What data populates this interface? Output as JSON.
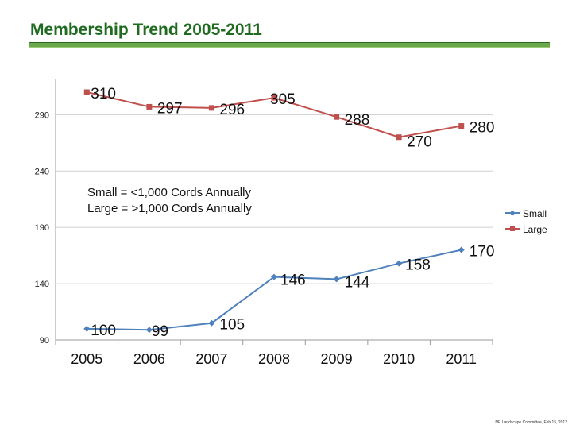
{
  "slide": {
    "title": "Membership Trend 2005-2011",
    "footer": "NE Landscape Committee, Feb 15, 2012"
  },
  "chart_data": {
    "type": "line",
    "title": "",
    "xlabel": "",
    "ylabel": "",
    "categories": [
      "2005",
      "2006",
      "2007",
      "2008",
      "2009",
      "2010",
      "2011"
    ],
    "series": [
      {
        "name": "Small",
        "color": "#4f81bd",
        "marker": "diamond",
        "values": [
          100,
          99,
          105,
          146,
          144,
          158,
          170
        ]
      },
      {
        "name": "Large",
        "color": "#c0504d",
        "marker": "square",
        "values": [
          310,
          297,
          296,
          305,
          288,
          270,
          280
        ]
      }
    ],
    "ylim": [
      90,
      310
    ],
    "yticks": [
      90,
      140,
      190,
      240,
      290
    ],
    "grid": true,
    "legend": "right",
    "annotation": [
      "Small = <1,000 Cords Annually",
      "Large = >1,000 Cords Annually"
    ]
  }
}
